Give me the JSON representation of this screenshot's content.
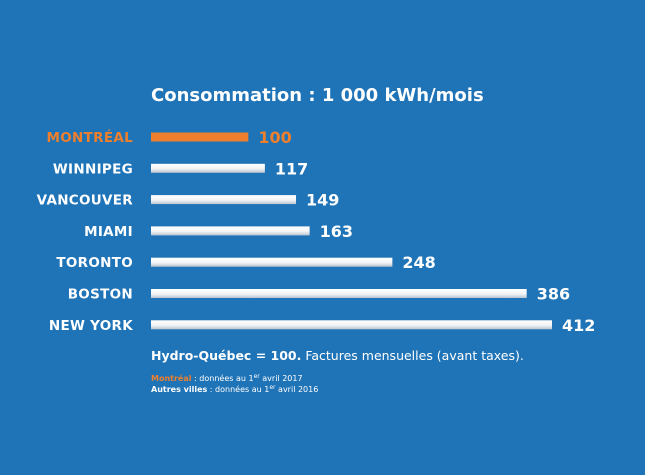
{
  "chart_data": {
    "type": "bar",
    "orientation": "horizontal",
    "title": "Consommation : 1 000 kWh/mois",
    "categories": [
      "MONTRÉAL",
      "WINNIPEG",
      "VANCOUVER",
      "MIAMI",
      "TORONTO",
      "BOSTON",
      "NEW YORK"
    ],
    "values": [
      100,
      117,
      149,
      163,
      248,
      386,
      412
    ],
    "highlight_category": "MONTRÉAL",
    "xlim": [
      0,
      412
    ],
    "grid": false
  },
  "colors": {
    "background": "#1f73b7",
    "bar": "#ffffff",
    "highlight": "#ee7f2d",
    "text": "#ffffff"
  },
  "footnote": {
    "bold": "Hydro-Québec = 100.",
    "text": " Factures mensuelles (avant taxes)."
  },
  "sources": [
    {
      "label": "Montréal",
      "text": " : données au 1",
      "sup": "er",
      "tail": " avril 2017"
    },
    {
      "label": "Autres villes",
      "text": " : données au 1",
      "sup": "er",
      "tail": " avril 2016"
    }
  ]
}
